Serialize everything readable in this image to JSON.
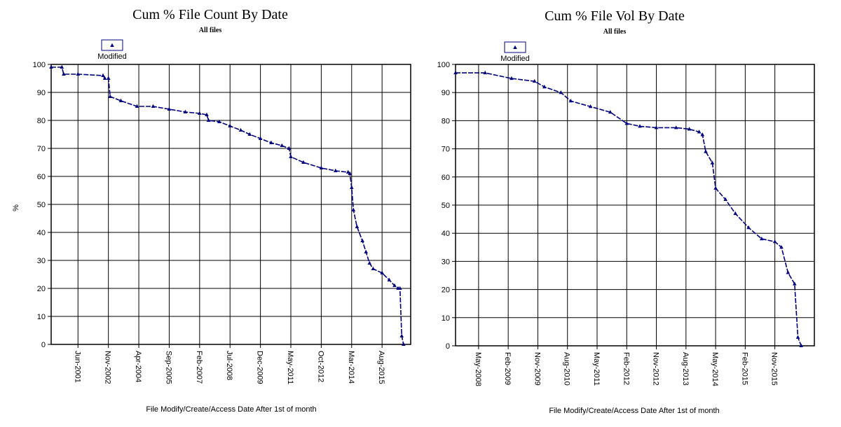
{
  "chart_data": [
    {
      "type": "line",
      "title": "Cum % File Count By Date",
      "subtitle": "All files",
      "legend": {
        "label": "Modified",
        "position": "top-left"
      },
      "xlabel": "File Modify/Create/Access Date After 1st of month",
      "ylabel": "%",
      "ylim": [
        0,
        100
      ],
      "yticks": [
        0,
        10,
        20,
        30,
        40,
        50,
        60,
        70,
        80,
        90,
        100
      ],
      "xlim": [
        "2000-03",
        "2016-12"
      ],
      "xticks": [
        {
          "date": "2001-06",
          "label": "Jun-2001"
        },
        {
          "date": "2002-11",
          "label": "Nov-2002"
        },
        {
          "date": "2004-04",
          "label": "Apr-2004"
        },
        {
          "date": "2005-09",
          "label": "Sep-2005"
        },
        {
          "date": "2007-02",
          "label": "Feb-2007"
        },
        {
          "date": "2008-07",
          "label": "Jul-2008"
        },
        {
          "date": "2009-12",
          "label": "Dec-2009"
        },
        {
          "date": "2011-05",
          "label": "May-2011"
        },
        {
          "date": "2012-10",
          "label": "Oct-2012"
        },
        {
          "date": "2014-03",
          "label": "Mar-2014"
        },
        {
          "date": "2015-08",
          "label": "Aug-2015"
        }
      ],
      "grid": true,
      "color": "#000080",
      "series": [
        {
          "name": "Modified",
          "x": [
            "2000-03",
            "2000-09",
            "2000-10",
            "2001-06",
            "2002-08",
            "2002-09",
            "2002-11",
            "2002-12",
            "2003-06",
            "2004-03",
            "2004-12",
            "2005-09",
            "2006-06",
            "2007-02",
            "2007-06",
            "2007-07",
            "2008-01",
            "2008-07",
            "2009-01",
            "2009-06",
            "2009-12",
            "2010-06",
            "2010-12",
            "2011-04",
            "2011-05",
            "2011-12",
            "2012-10",
            "2013-06",
            "2014-01",
            "2014-02",
            "2014-03",
            "2014-04",
            "2014-06",
            "2014-09",
            "2014-11",
            "2015-01",
            "2015-03",
            "2015-08",
            "2015-12",
            "2016-03",
            "2016-05",
            "2016-06",
            "2016-07",
            "2016-08"
          ],
          "y": [
            99,
            99,
            96.5,
            96.5,
            96,
            95,
            95,
            88.5,
            87,
            85,
            85,
            84,
            83,
            82.5,
            82,
            80,
            79.5,
            78,
            76.5,
            75,
            73.5,
            72,
            71,
            70,
            67,
            65,
            63,
            62,
            61.5,
            61,
            56,
            48,
            42,
            37,
            33,
            29,
            27,
            25.5,
            23,
            21,
            20,
            20,
            3,
            0
          ]
        }
      ]
    },
    {
      "type": "line",
      "title": "Cum % File Vol By Date",
      "subtitle": "All files",
      "legend": {
        "label": "Modified",
        "position": "top-left"
      },
      "xlabel": "File Modify/Create/Access Date After 1st of month",
      "ylabel": "",
      "ylim": [
        0,
        100
      ],
      "yticks": [
        0,
        10,
        20,
        30,
        40,
        50,
        60,
        70,
        80,
        90,
        100
      ],
      "xlim": [
        "2007-10",
        "2016-11"
      ],
      "xticks": [
        {
          "date": "2008-05",
          "label": "May-2008"
        },
        {
          "date": "2009-02",
          "label": "Feb-2009"
        },
        {
          "date": "2009-11",
          "label": "Nov-2009"
        },
        {
          "date": "2010-08",
          "label": "Aug-2010"
        },
        {
          "date": "2011-05",
          "label": "May-2011"
        },
        {
          "date": "2012-02",
          "label": "Feb-2012"
        },
        {
          "date": "2012-11",
          "label": "Nov-2012"
        },
        {
          "date": "2013-08",
          "label": "Aug-2013"
        },
        {
          "date": "2014-05",
          "label": "May-2014"
        },
        {
          "date": "2015-02",
          "label": "Feb-2015"
        },
        {
          "date": "2015-11",
          "label": "Nov-2015"
        }
      ],
      "grid": true,
      "color": "#000080",
      "series": [
        {
          "name": "Modified",
          "x": [
            "2007-10",
            "2008-07",
            "2009-03",
            "2009-10",
            "2010-01",
            "2010-06",
            "2010-09",
            "2011-03",
            "2011-09",
            "2012-02",
            "2012-06",
            "2012-11",
            "2013-05",
            "2013-09",
            "2013-12",
            "2014-01",
            "2014-02",
            "2014-04",
            "2014-05",
            "2014-08",
            "2014-11",
            "2015-03",
            "2015-07",
            "2015-11",
            "2016-01",
            "2016-03",
            "2016-05",
            "2016-06",
            "2016-07"
          ],
          "y": [
            97,
            97,
            95,
            94,
            92,
            90,
            87,
            85,
            83,
            79,
            78,
            77.5,
            77.5,
            77,
            76,
            75,
            69,
            65,
            56,
            52,
            47,
            42,
            38,
            37,
            35,
            26,
            22,
            3,
            0
          ]
        }
      ]
    }
  ]
}
